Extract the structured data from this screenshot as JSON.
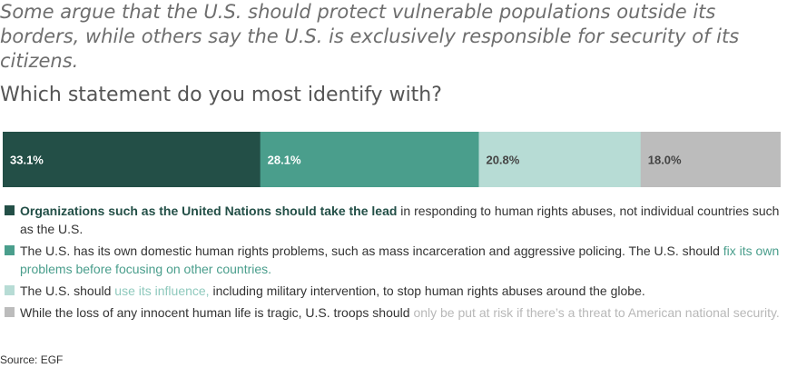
{
  "intro": "Some argue that the U.S. should protect vulnerable populations outside its borders, while others say the U.S. is exclusively responsible for security of its citizens.",
  "question": "Which statement do you most identify with?",
  "colors": [
    "#234f47",
    "#4a9e8c",
    "#b7dcd5",
    "#bcbcbc"
  ],
  "chart_data": {
    "type": "bar",
    "orientation": "horizontal-stacked-100",
    "categories": [
      "Which statement do you most identify with?"
    ],
    "unit": "%",
    "series": [
      {
        "values": [
          33.1
        ],
        "label": "33.1%"
      },
      {
        "values": [
          28.1
        ],
        "label": "28.1%"
      },
      {
        "values": [
          20.8
        ],
        "label": "20.8%"
      },
      {
        "values": [
          18.0
        ],
        "label": "18.0%"
      }
    ],
    "label_colors": [
      "#ffffff",
      "#ffffff",
      "#444444",
      "#444444"
    ],
    "legend_placement": "below",
    "grid": false
  },
  "legend": [
    {
      "parts": [
        {
          "text": "Organizations such as the United Nations should take the lead",
          "style": "bold-accent"
        },
        {
          "text": " in responding to human rights abuses, not individual countries such as the U.S.",
          "style": "plain"
        }
      ]
    },
    {
      "parts": [
        {
          "text": "The U.S. has its own domestic human rights problems, such as mass incarceration and aggressive policing. The U.S. should ",
          "style": "plain"
        },
        {
          "text": "fix its own problems before focusing on other countries.",
          "style": "accent"
        }
      ]
    },
    {
      "parts": [
        {
          "text": "The U.S. should ",
          "style": "plain"
        },
        {
          "text": "use its influence,",
          "style": "accent"
        },
        {
          "text": " including military intervention, to stop human rights abuses around the globe.",
          "style": "plain"
        }
      ]
    },
    {
      "parts": [
        {
          "text": "While the loss of any innocent human life is tragic, U.S. troops should ",
          "style": "plain"
        },
        {
          "text": "only be put at risk if there’s a threat to American national security.",
          "style": "accent"
        }
      ]
    }
  ],
  "source": "Source: EGF"
}
